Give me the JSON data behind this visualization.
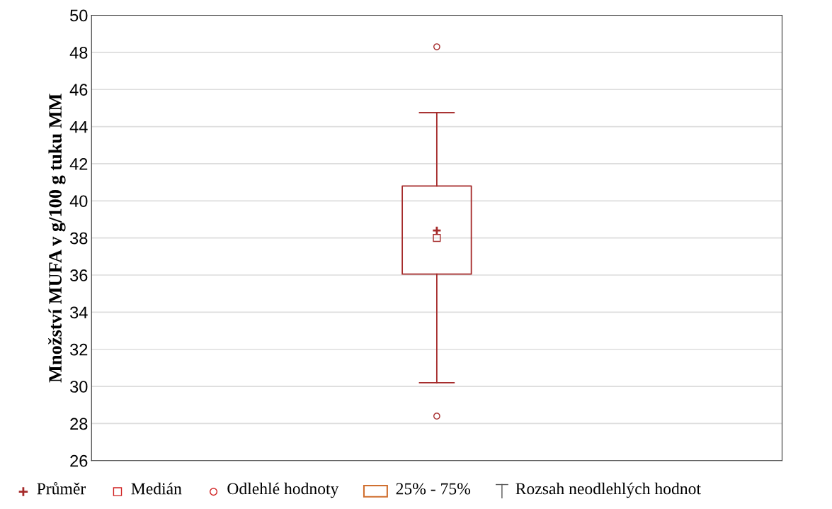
{
  "chart_data": {
    "type": "box",
    "ylabel": "Množství MUFA v g/100 g tuku MM",
    "categories": [
      null
    ],
    "boxes": [
      {
        "low": 30.2,
        "q1": 36.05,
        "median": 38.0,
        "q3": 40.8,
        "high": 44.75,
        "mean": 38.4,
        "outliers": [
          48.3,
          28.4
        ]
      }
    ],
    "color": "#a52a2a",
    "ylim": [
      26,
      50
    ],
    "yticks": [
      26,
      28,
      30,
      32,
      34,
      36,
      38,
      40,
      42,
      44,
      46,
      48,
      50
    ],
    "grid": "y",
    "annotations": [
      "Průměr",
      "Medián",
      "Odlehlé hodnoty",
      "25% - 75%",
      "Rozsah neodlehlých hodnot"
    ]
  }
}
